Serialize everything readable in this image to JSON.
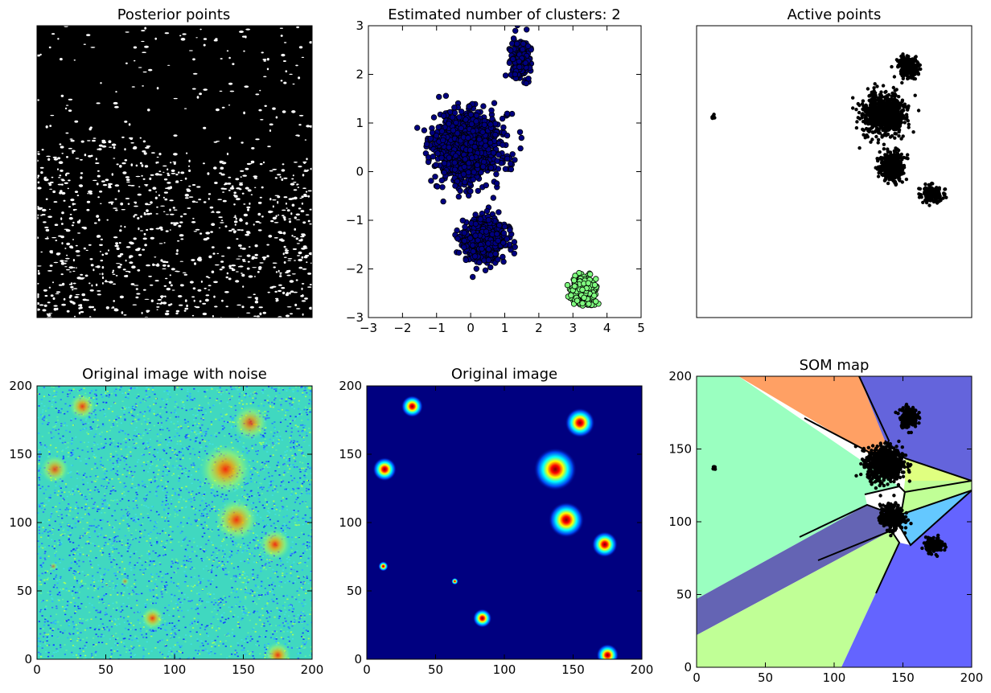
{
  "charts": [
    {
      "id": "posterior",
      "title": "Posterior points",
      "type": "scatter",
      "axes_visible": false,
      "description_marks": "dense black scatter covering the whole area"
    },
    {
      "id": "clusters",
      "title": "Estimated number of clusters: 2",
      "type": "scatter",
      "xlim": [
        -3,
        5
      ],
      "ylim": [
        -3,
        3
      ],
      "xticks": [
        "−3",
        "−2",
        "−1",
        "0",
        "1",
        "2",
        "3",
        "4",
        "5"
      ],
      "yticks": [
        "3",
        "2",
        "1",
        "0",
        "−1",
        "−2",
        "−3"
      ],
      "xtick_values": [
        -3,
        -2,
        -1,
        0,
        1,
        2,
        3,
        4,
        5
      ],
      "ytick_values": [
        3,
        2,
        1,
        0,
        -1,
        -2,
        -3
      ],
      "series": [
        {
          "color": "#000080",
          "blobs": [
            {
              "cx": -0.1,
              "cy": 0.5,
              "sx": 0.85,
              "sy": 0.45,
              "n": 1300
            },
            {
              "cx": 0.4,
              "cy": -1.4,
              "sx": 0.55,
              "sy": 0.3,
              "n": 600
            },
            {
              "cx": 1.45,
              "cy": 2.3,
              "sx": 0.25,
              "sy": 0.25,
              "n": 260
            }
          ]
        },
        {
          "color": "#7fff7f",
          "blobs": [
            {
              "cx": 3.3,
              "cy": -2.45,
              "sx": 0.3,
              "sy": 0.17,
              "n": 420
            }
          ]
        }
      ]
    },
    {
      "id": "active",
      "title": "Active points",
      "type": "scatter",
      "axes_visible": false
    },
    {
      "id": "noise",
      "title": "Original image with noise",
      "type": "heatmap",
      "xlim": [
        0,
        200
      ],
      "ylim": [
        0,
        200
      ],
      "xticks": [
        "0",
        "50",
        "100",
        "150",
        "200"
      ],
      "yticks": [
        "200",
        "150",
        "100",
        "50",
        "0"
      ],
      "tick_values": [
        0,
        50,
        100,
        150,
        200
      ]
    },
    {
      "id": "original",
      "title": "Original image",
      "type": "heatmap",
      "xlim": [
        0,
        200
      ],
      "ylim": [
        0,
        200
      ],
      "xticks": [
        "0",
        "50",
        "100",
        "150",
        "200"
      ],
      "yticks": [
        "200",
        "150",
        "100",
        "50",
        "0"
      ],
      "tick_values": [
        0,
        50,
        100,
        150,
        200
      ]
    },
    {
      "id": "som",
      "title": "SOM map",
      "type": "scatter",
      "xlim": [
        0,
        200
      ],
      "ylim": [
        0,
        200
      ],
      "xticks": [
        "0",
        "50",
        "100",
        "150",
        "200"
      ],
      "yticks": [
        "200",
        "150",
        "100",
        "50",
        "0"
      ],
      "tick_values": [
        0,
        50,
        100,
        150,
        200
      ],
      "region_colors": [
        "#9affc0",
        "#ffa064",
        "#6464dc",
        "#c0ff96",
        "#64c8ff",
        "#6464b4",
        "#6464ff",
        "#e0ff80"
      ]
    }
  ],
  "chart_data": [
    {
      "type": "scatter",
      "title": "Posterior points",
      "series": [
        {
          "color": "#000000",
          "note": "uniform dense cloud"
        }
      ]
    },
    {
      "type": "scatter",
      "title": "Estimated number of clusters: 2",
      "xlim": [
        -3,
        5
      ],
      "ylim": [
        -3,
        3
      ],
      "series": [
        {
          "color": "#000080",
          "centers": [
            [
              -0.1,
              0.5
            ],
            [
              0.4,
              -1.4
            ],
            [
              1.45,
              2.3
            ]
          ]
        },
        {
          "color": "#7fff7f",
          "centers": [
            [
              3.3,
              -2.45
            ]
          ]
        }
      ]
    },
    {
      "type": "scatter",
      "title": "Active points",
      "series": [
        {
          "color": "#000000",
          "centers": [
            [
              137,
              137
            ],
            [
              140,
              102
            ],
            [
              153,
              172
            ],
            [
              172,
              84
            ],
            [
              12,
              137
            ]
          ]
        }
      ]
    },
    {
      "type": "heatmap",
      "title": "Original image with noise",
      "xlim": [
        0,
        200
      ],
      "ylim": [
        0,
        200
      ]
    },
    {
      "type": "heatmap",
      "title": "Original image",
      "xlim": [
        0,
        200
      ],
      "ylim": [
        0,
        200
      ],
      "sources": [
        {
          "x": 137,
          "y": 139,
          "r": 13,
          "amp": 1.0
        },
        {
          "x": 155,
          "y": 173,
          "r": 10,
          "amp": 0.7
        },
        {
          "x": 145,
          "y": 102,
          "r": 11,
          "amp": 0.95
        },
        {
          "x": 173,
          "y": 84,
          "r": 8,
          "amp": 0.95
        },
        {
          "x": 33,
          "y": 185,
          "r": 7,
          "amp": 0.85
        },
        {
          "x": 13,
          "y": 139,
          "r": 8,
          "amp": 0.7
        },
        {
          "x": 84,
          "y": 30,
          "r": 6,
          "amp": 0.85
        },
        {
          "x": 175,
          "y": 3,
          "r": 7,
          "amp": 0.9
        },
        {
          "x": 12,
          "y": 68,
          "r": 3.5,
          "amp": 0.55
        },
        {
          "x": 64,
          "y": 57,
          "r": 2.5,
          "amp": 0.45
        }
      ]
    },
    {
      "type": "scatter",
      "title": "SOM map",
      "xlim": [
        0,
        200
      ],
      "ylim": [
        0,
        200
      ],
      "series": [
        {
          "color": "#000000",
          "centers": [
            [
              137,
              140
            ],
            [
              142,
              103
            ],
            [
              154,
              172
            ],
            [
              173,
              84
            ],
            [
              13,
              137
            ]
          ]
        }
      ]
    }
  ]
}
